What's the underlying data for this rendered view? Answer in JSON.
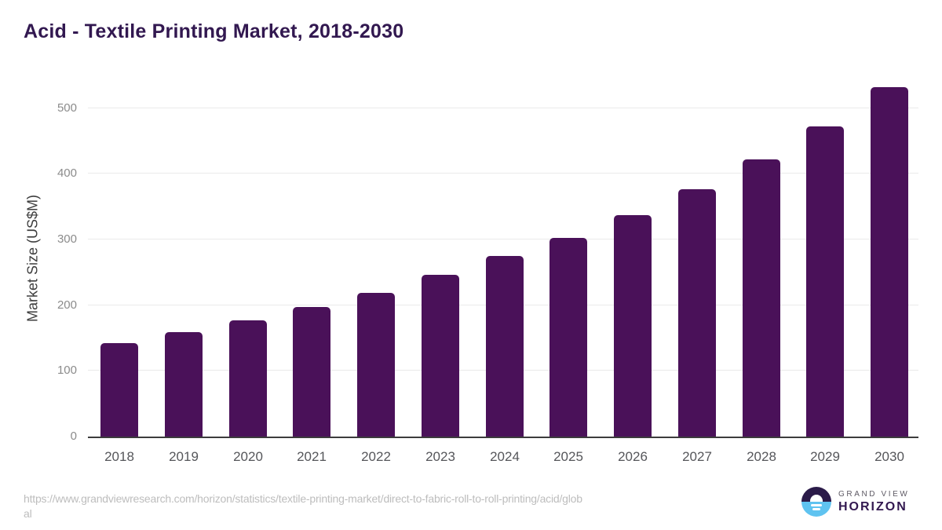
{
  "header": {
    "title": "Acid - Textile Printing Market, 2018-2030"
  },
  "chart_data": {
    "type": "bar",
    "title": "Acid - Textile Printing Market, 2018-2030",
    "categories": [
      "2018",
      "2019",
      "2020",
      "2021",
      "2022",
      "2023",
      "2024",
      "2025",
      "2026",
      "2027",
      "2028",
      "2029",
      "2030"
    ],
    "values": [
      142,
      159,
      177,
      197,
      219,
      246,
      275,
      302,
      337,
      377,
      422,
      472,
      532
    ],
    "xlabel": "",
    "ylabel": "Market Size (US$M)",
    "ylim": [
      0,
      545
    ],
    "yticks": [
      0,
      100,
      200,
      300,
      400,
      500
    ],
    "grid": "horizontal",
    "legend": "none"
  },
  "footer": {
    "source_url": "https://www.grandviewresearch.com/horizon/statistics/textile-printing-market/direct-to-fabric-roll-to-roll-printing/acid/global",
    "source_lines": [
      "https://www.grandviewresearch.com/horizon/statistics/textile-printing-market/direct-to-fabric-roll-to-roll-printing/acid/glob",
      "al"
    ],
    "logo": {
      "name": "Grand View Horizon",
      "line1": "GRAND VIEW",
      "line2": "HORIZON"
    }
  },
  "colors": {
    "bar": "#4A1159",
    "title_text": "#321850",
    "axis_line": "#3C3C3C",
    "gridline": "#EAEAEA",
    "y_tick_text": "#8B8B8B",
    "x_tick_text": "#55565A",
    "y_axis_title_text": "#3D3D3D",
    "source_text": "#BDBDBD",
    "logo_blue": "#5FC3F0",
    "logo_purple": "#2B1B49",
    "logo_gray_text": "#5E5A64"
  }
}
